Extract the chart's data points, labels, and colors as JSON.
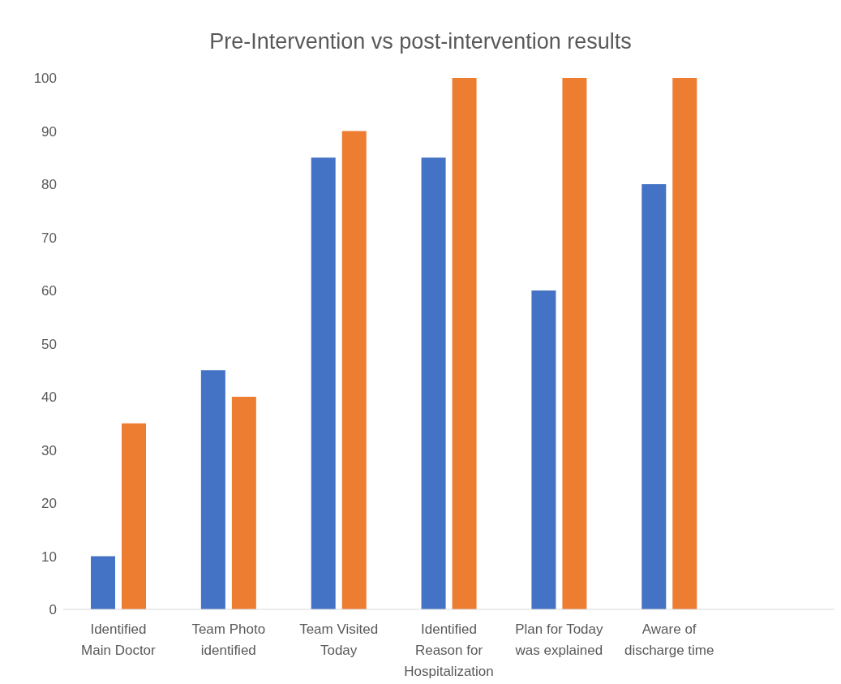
{
  "chart_data": {
    "type": "bar",
    "title": "Pre-Intervention vs post-intervention results",
    "categories": [
      "Identified Main Doctor",
      "Team Photo identified",
      "Team Visited Today",
      "Identified Reason for Hospitalization",
      "Plan for Today was explained",
      "Aware of discharge time",
      null
    ],
    "series": [
      {
        "color": "#4472c4",
        "values": [
          10,
          45,
          85,
          85,
          60,
          80,
          null
        ]
      },
      {
        "color": "#ed7d31",
        "values": [
          35,
          40,
          90,
          100,
          100,
          100,
          null
        ]
      }
    ],
    "ylim": [
      0,
      100
    ],
    "yticks": [
      0,
      10,
      20,
      30,
      40,
      50,
      60,
      70,
      80,
      90,
      100
    ],
    "grid": false,
    "legend": false
  }
}
